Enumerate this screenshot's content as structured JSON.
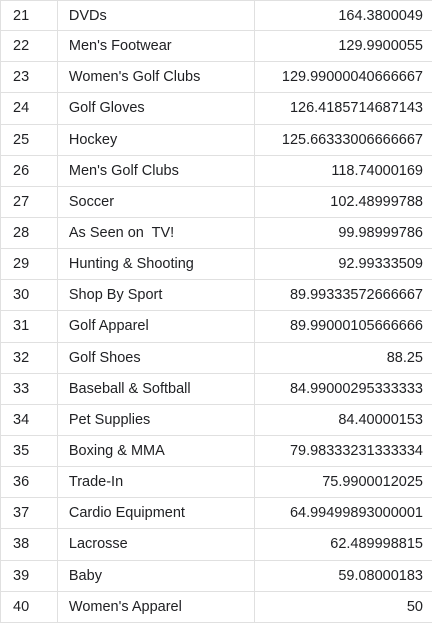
{
  "rows": [
    {
      "num": "21",
      "name": "DVDs",
      "value": "164.3800049"
    },
    {
      "num": "22",
      "name": "Men's Footwear",
      "value": "129.9900055"
    },
    {
      "num": "23",
      "name": "Women's Golf Clubs",
      "value": "129.99000040666667"
    },
    {
      "num": "24",
      "name": "Golf Gloves",
      "value": "126.4185714687143"
    },
    {
      "num": "25",
      "name": "Hockey",
      "value": "125.66333006666667"
    },
    {
      "num": "26",
      "name": "Men's Golf Clubs",
      "value": "118.74000169"
    },
    {
      "num": "27",
      "name": "Soccer",
      "value": "102.48999788"
    },
    {
      "num": "28",
      "name": "As Seen on  TV!",
      "value": "99.98999786"
    },
    {
      "num": "29",
      "name": "Hunting & Shooting",
      "value": "92.99333509"
    },
    {
      "num": "30",
      "name": "Shop By Sport",
      "value": "89.99333572666667"
    },
    {
      "num": "31",
      "name": "Golf Apparel",
      "value": "89.99000105666666"
    },
    {
      "num": "32",
      "name": "Golf Shoes",
      "value": "88.25"
    },
    {
      "num": "33",
      "name": "Baseball & Softball",
      "value": "84.99000295333333"
    },
    {
      "num": "34",
      "name": "Pet Supplies",
      "value": "84.40000153"
    },
    {
      "num": "35",
      "name": "Boxing & MMA",
      "value": "79.98333231333334"
    },
    {
      "num": "36",
      "name": "Trade-In",
      "value": "75.9900012025"
    },
    {
      "num": "37",
      "name": "Cardio Equipment",
      "value": "64.99499893000001"
    },
    {
      "num": "38",
      "name": "Lacrosse",
      "value": "62.489998815"
    },
    {
      "num": "39",
      "name": "Baby",
      "value": "59.08000183"
    },
    {
      "num": "40",
      "name": "Women's Apparel",
      "value": "50"
    }
  ]
}
